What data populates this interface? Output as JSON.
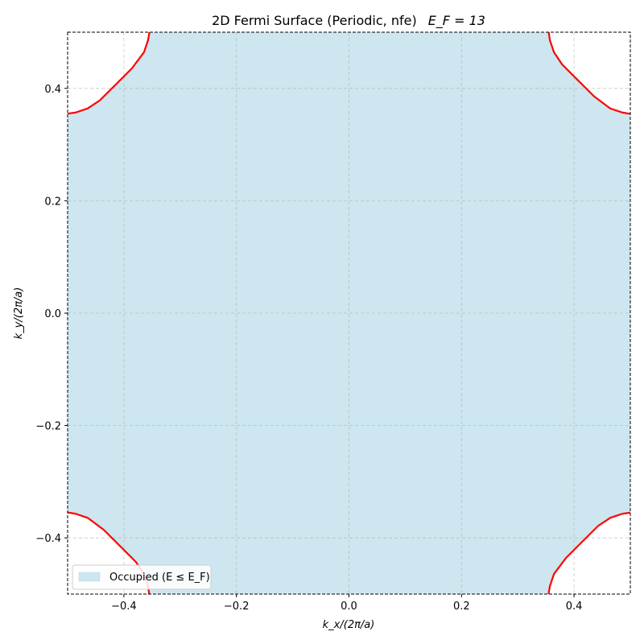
{
  "chart_data": {
    "type": "area",
    "title_main": "2D Fermi Surface (Periodic, nfe)",
    "title_ef": "E_F = 13",
    "xlabel": "k_x/(2π/a)",
    "ylabel": "k_y/(2π/a)",
    "xlim": [
      -0.5,
      0.5
    ],
    "ylim": [
      -0.5,
      0.5
    ],
    "xticks": [
      -0.4,
      -0.2,
      0.0,
      0.2,
      0.4
    ],
    "yticks": [
      -0.4,
      -0.2,
      0.0,
      0.2,
      0.4
    ],
    "xtick_labels": [
      "−0.4",
      "−0.2",
      "0.0",
      "0.2",
      "0.4"
    ],
    "ytick_labels": [
      "−0.4",
      "−0.2",
      "0.0",
      "0.2",
      "0.4"
    ],
    "grid": true,
    "legend": {
      "placement": "lower-left",
      "label": "Occupied (E ≤ E_F)"
    },
    "colors": {
      "occupied_fill": "#cde6ef",
      "fermi_line": "#ff0000",
      "grid": "#b0b0b0"
    },
    "fermi_contour_corner": [
      [
        0.5,
        0.355
      ],
      [
        0.4976,
        0.355
      ],
      [
        0.4857,
        0.3571
      ],
      [
        0.4643,
        0.3643
      ],
      [
        0.4357,
        0.3857
      ],
      [
        0.4071,
        0.4143
      ],
      [
        0.3786,
        0.4429
      ],
      [
        0.3643,
        0.4643
      ],
      [
        0.3571,
        0.4857
      ],
      [
        0.355,
        0.5
      ]
    ]
  }
}
